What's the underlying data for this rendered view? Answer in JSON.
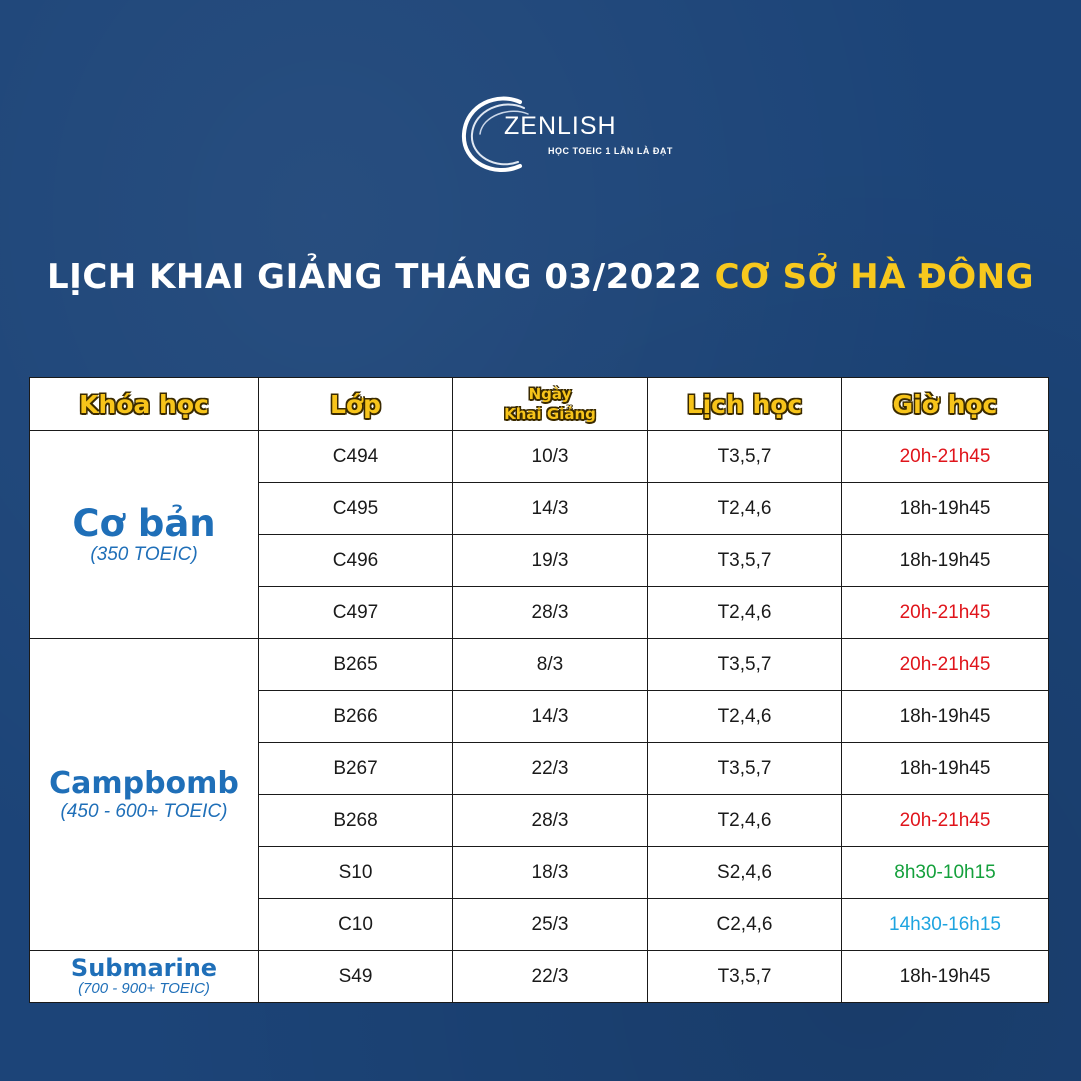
{
  "logo": {
    "word": "ZENLISH",
    "tagline": "HỌC TOEIC 1 LẦN LÀ ĐẠT"
  },
  "headline": {
    "white_part": "LỊCH KHAI GIẢNG THÁNG 03/2022",
    "yellow_part": "CƠ SỞ HÀ ĐÔNG"
  },
  "table": {
    "headers": {
      "course": "Khóa học",
      "class": "Lớp",
      "start_date_line1": "Ngày",
      "start_date_line2": "Khai Giảng",
      "schedule": "Lịch học",
      "time": "Giờ học"
    },
    "courses": [
      {
        "name": "Cơ bản",
        "sub": "(350 TOEIC)"
      },
      {
        "name": "Campbomb",
        "sub": "(450 - 600+ TOEIC)"
      },
      {
        "name": "Submarine",
        "sub": "(700 - 900+ TOEIC)"
      }
    ],
    "rows": [
      {
        "class": "C494",
        "date": "10/3",
        "days": "T3,5,7",
        "time": "20h-21h45"
      },
      {
        "class": "C495",
        "date": "14/3",
        "days": "T2,4,6",
        "time": "18h-19h45"
      },
      {
        "class": "C496",
        "date": "19/3",
        "days": "T3,5,7",
        "time": "18h-19h45"
      },
      {
        "class": "C497",
        "date": "28/3",
        "days": "T2,4,6",
        "time": "20h-21h45"
      },
      {
        "class": "B265",
        "date": "8/3",
        "days": "T3,5,7",
        "time": "20h-21h45"
      },
      {
        "class": "B266",
        "date": "14/3",
        "days": "T2,4,6",
        "time": "18h-19h45"
      },
      {
        "class": "B267",
        "date": "22/3",
        "days": "T3,5,7",
        "time": "18h-19h45"
      },
      {
        "class": "B268",
        "date": "28/3",
        "days": "T2,4,6",
        "time": "20h-21h45"
      },
      {
        "class": "S10",
        "date": "18/3",
        "days": "S2,4,6",
        "time": "8h30-10h15"
      },
      {
        "class": "C10",
        "date": "25/3",
        "days": "C2,4,6",
        "time": "14h30-16h15"
      },
      {
        "class": "S49",
        "date": "22/3",
        "days": "T3,5,7",
        "time": "18h-19h45"
      }
    ]
  },
  "colors": {
    "background": "#1c4478",
    "headline_yellow": "#f7c81e",
    "header_yellow": "#f7c41a",
    "course_blue": "#1f6fb8",
    "time_evening": "#e0141b",
    "time_normal": "#1a1a1a",
    "time_morning": "#14a03c",
    "time_afternoon": "#1ea4e0"
  }
}
